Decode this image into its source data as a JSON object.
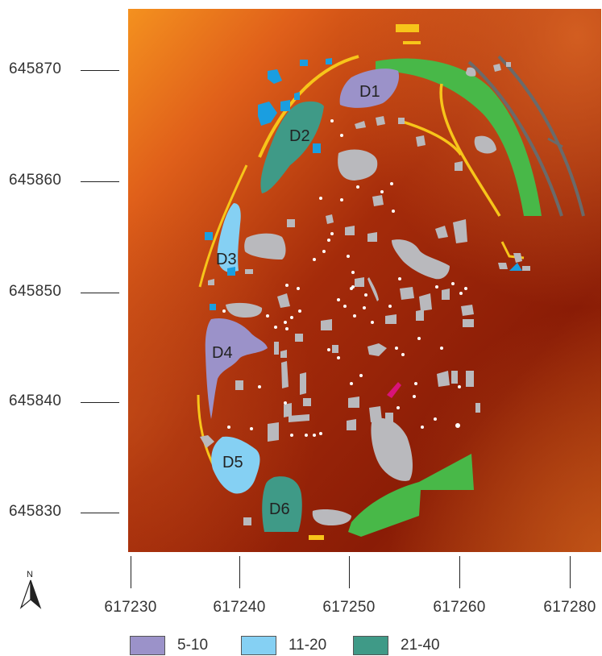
{
  "map": {
    "zones": [
      {
        "id": "D1",
        "label": "D1"
      },
      {
        "id": "D2",
        "label": "D2"
      },
      {
        "id": "D3",
        "label": "D3"
      },
      {
        "id": "D4",
        "label": "D4"
      },
      {
        "id": "D5",
        "label": "D5"
      },
      {
        "id": "D6",
        "label": "D6"
      }
    ],
    "y_ticks": [
      "645870",
      "645860",
      "645850",
      "645840",
      "645830"
    ],
    "x_ticks": [
      "617230",
      "617240",
      "617250",
      "617260",
      "617280"
    ],
    "north_label": "N"
  },
  "legend": {
    "items": [
      {
        "label": "5-10",
        "color": "#9b92c9"
      },
      {
        "label": "11-20",
        "color": "#85d0f3"
      },
      {
        "label": "21-40",
        "color": "#3f9a87"
      }
    ]
  },
  "colors": {
    "background_dark": "#8a1a06",
    "background_light": "#f28a22",
    "wall_green": "#48b848",
    "wall_yellow": "#f7c51a",
    "wall_gray": "#6a6a6a",
    "stone_gray": "#b9b9bd",
    "water_blue": "#1a9ee0",
    "accent_magenta": "#d9137a"
  }
}
